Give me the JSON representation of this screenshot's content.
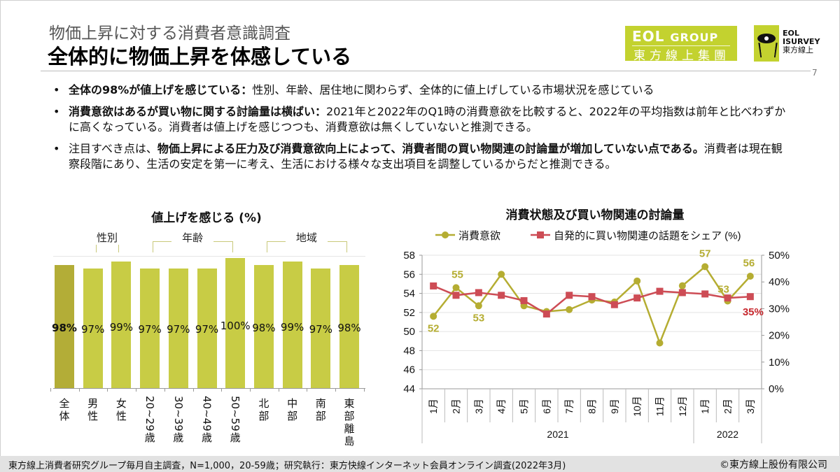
{
  "header": {
    "subtitle": "物価上昇に対する消費者意識調査",
    "title": "全体的に物価上昇を体感している",
    "page_number": "7",
    "logo_group": {
      "line1_big": "EOL",
      "line1_small": "GROUP",
      "line2": "東方線上集團"
    },
    "logo_isurvey": {
      "line1": "EOL",
      "line2": "ISURVEY",
      "line3": "東方線上"
    }
  },
  "bullets": [
    {
      "bold": "全体の98%が値上げを感じている：",
      "text": "性別、年齢、居住地に関わらず、全体的に値上げしている市場状況を感じている"
    },
    {
      "bold": "消費意欲はあるが買い物に関する討論量は横ばい：",
      "text": "2021年と2022年のQ1時の消費意欲を比較すると、2022年の平均指数は前年と比べわずかに高くなっている。消費者は値上げを感じつつも、消費意欲は無くしていないと推測できる。"
    },
    {
      "pre": "注目すべき点は、",
      "bold": "物価上昇による圧力及び消費意欲向上によって、消費者間の買い物関連の討論量が増加していない点である。",
      "text": "消費者は現在観察段階にあり、生活の安定を第一に考え、生活における様々な支出項目を調整しているからだと推測できる。"
    }
  ],
  "colors": {
    "bar": "#c8cc45",
    "bar_highlight": "#b3ad37",
    "line1": "#b5ad32",
    "line2": "#cd4c55",
    "label_red": "#c8282e"
  },
  "chart_data": [
    {
      "type": "bar",
      "title": "値上げを感じる (%)",
      "groups": [
        {
          "label": "性別",
          "categories": [
            "男性",
            "女性"
          ]
        },
        {
          "label": "年齢",
          "categories": [
            "20~29歳",
            "30~39歳",
            "40~49歳",
            "50~59歳"
          ]
        },
        {
          "label": "地域",
          "categories": [
            "北部",
            "中部",
            "南部",
            "東部離島"
          ]
        }
      ],
      "categories": [
        "全体",
        "男性",
        "女性",
        "20~29歳",
        "30~39歳",
        "40~49歳",
        "50~59歳",
        "北部",
        "中部",
        "南部",
        "東部離島"
      ],
      "values": [
        98,
        97,
        99,
        97,
        97,
        97,
        100,
        98,
        99,
        97,
        98
      ],
      "labels": [
        "98%",
        "97%",
        "99%",
        "97%",
        "97%",
        "97%",
        "100%",
        "98%",
        "99%",
        "97%",
        "98%"
      ],
      "highlight_index": 0,
      "ylim": [
        0,
        100
      ]
    },
    {
      "type": "line",
      "title": "消費状態及び買い物関連の討論量",
      "x": [
        "1月",
        "2月",
        "3月",
        "4月",
        "5月",
        "6月",
        "7月",
        "8月",
        "9月",
        "10月",
        "11月",
        "12月",
        "1月",
        "2月",
        "3月"
      ],
      "year_groups": [
        {
          "label": "2021",
          "count": 12
        },
        {
          "label": "2022",
          "count": 3
        }
      ],
      "series": [
        {
          "name": "消費意欲",
          "axis": "left",
          "marker": "circle",
          "values": [
            51.6,
            54.6,
            52.7,
            56.0,
            52.7,
            52.1,
            52.3,
            53.3,
            53.1,
            55.3,
            48.8,
            54.8,
            56.8,
            53.2,
            55.8
          ],
          "data_labels": {
            "0": "52",
            "1": "55",
            "2": "53",
            "12": "57",
            "13": "53",
            "14": "56"
          }
        },
        {
          "name": "自発的に買い物関連の話題をシェア (%)",
          "axis": "right",
          "marker": "square",
          "values": [
            38.5,
            35,
            36,
            35,
            33,
            28,
            35,
            34.5,
            31.5,
            34,
            36.5,
            36,
            35.5,
            34,
            34.5
          ],
          "data_labels": {
            "14": "35%"
          }
        }
      ],
      "y_left": {
        "min": 44,
        "max": 58,
        "ticks": [
          "44",
          "46",
          "48",
          "50",
          "52",
          "54",
          "56",
          "58"
        ]
      },
      "y_right": {
        "min": 0,
        "max": 50,
        "ticks": [
          "0%",
          "10%",
          "20%",
          "30%",
          "40%",
          "50%"
        ]
      },
      "legend": "top",
      "grid": true
    }
  ],
  "footer": {
    "source": "東方線上消費者研究グループ毎月自主調査，N=1,000，20-59歳；研究執行：東方快線インターネット会員オンライン調査(2022年3月)",
    "copyright": "©東方線上股份有限公司"
  }
}
